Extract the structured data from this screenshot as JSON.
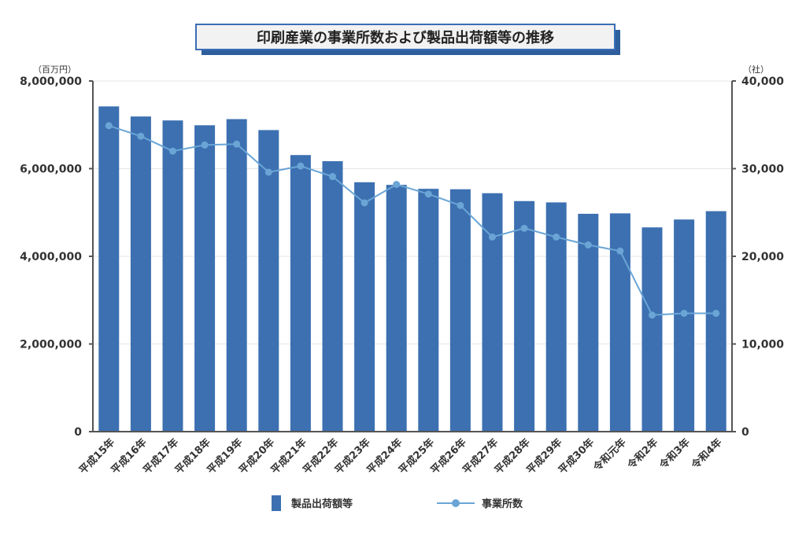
{
  "chart_data": {
    "type": "bar",
    "title": "印刷産業の事業所数および製品出荷額等の推移",
    "categories": [
      "平成15年",
      "平成16年",
      "平成17年",
      "平成18年",
      "平成19年",
      "平成20年",
      "平成21年",
      "平成22年",
      "平成23年",
      "平成24年",
      "平成25年",
      "平成26年",
      "平成27年",
      "平成28年",
      "平成29年",
      "平成30年",
      "令和元年",
      "令和2年",
      "令和3年",
      "令和4年"
    ],
    "series": [
      {
        "name": "製品出荷額等",
        "type": "bar",
        "axis": "left",
        "color": "#3c70b1",
        "values": [
          7420000,
          7190000,
          7100000,
          6990000,
          7130000,
          6880000,
          6310000,
          6170000,
          5690000,
          5630000,
          5540000,
          5530000,
          5440000,
          5260000,
          5230000,
          4970000,
          4980000,
          4660000,
          4840000,
          5030000
        ]
      },
      {
        "name": "事業所数",
        "type": "line",
        "axis": "right",
        "color": "#6aa5d6",
        "values": [
          34900,
          33700,
          32000,
          32700,
          32800,
          29600,
          30300,
          29100,
          26100,
          28200,
          27100,
          25800,
          22200,
          23200,
          22200,
          21300,
          20600,
          13300,
          13500,
          13500
        ]
      }
    ],
    "y_left": {
      "unit": "（百万円）",
      "range": [
        0,
        8000000
      ],
      "ticks": [
        {
          "value": 0,
          "label": "0"
        },
        {
          "value": 2000000,
          "label": "2,000,000"
        },
        {
          "value": 4000000,
          "label": "4,000,000"
        },
        {
          "value": 6000000,
          "label": "6,000,000"
        },
        {
          "value": 8000000,
          "label": "8,000,000"
        }
      ]
    },
    "y_right": {
      "unit": "（社）",
      "range": [
        0,
        40000
      ],
      "ticks": [
        {
          "value": 0,
          "label": "0"
        },
        {
          "value": 10000,
          "label": "10,000"
        },
        {
          "value": 20000,
          "label": "20,000"
        },
        {
          "value": 30000,
          "label": "30,000"
        },
        {
          "value": 40000,
          "label": "40,000"
        }
      ]
    },
    "grid": true,
    "legend": "bottom-center"
  }
}
